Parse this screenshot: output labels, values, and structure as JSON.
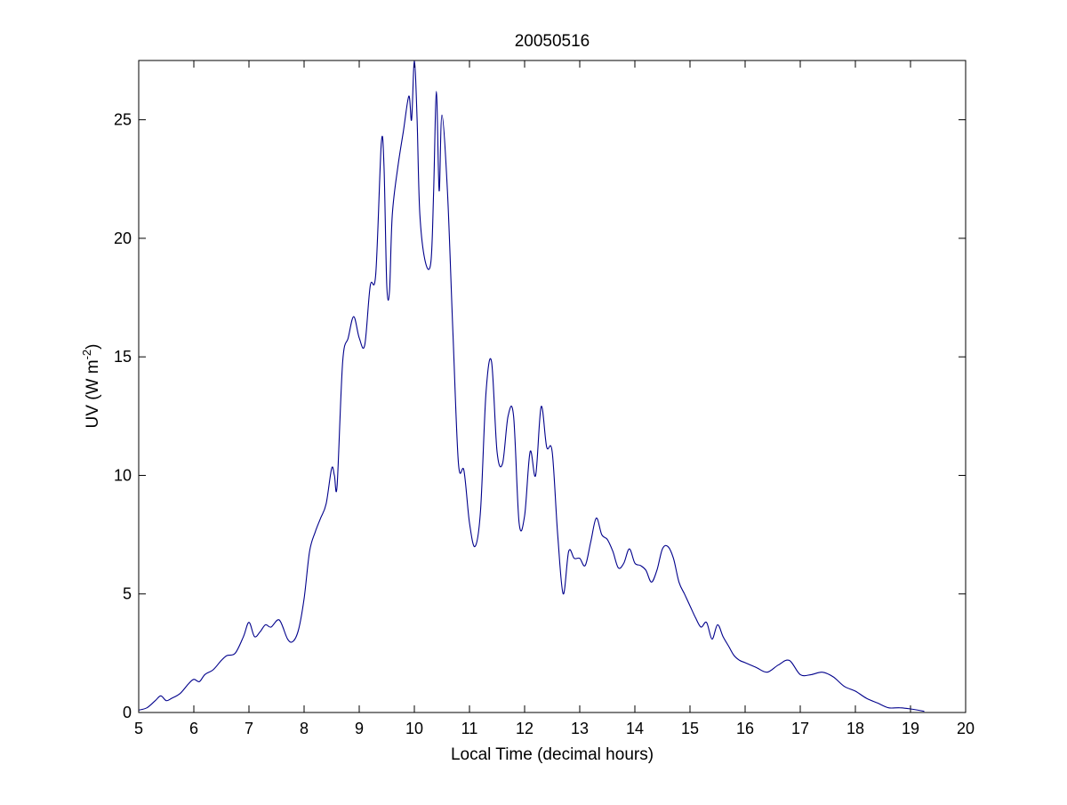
{
  "chart_data": {
    "type": "line",
    "title": "20050516",
    "xlabel": "Local Time (decimal hours)",
    "ylabel": {
      "base": "UV (W m",
      "superscript": "-2",
      "close": ")"
    },
    "xlim": [
      5,
      20
    ],
    "ylim": [
      0,
      27.5
    ],
    "xticks": [
      5,
      6,
      7,
      8,
      9,
      10,
      11,
      12,
      13,
      14,
      15,
      16,
      17,
      18,
      19,
      20
    ],
    "yticks": [
      0,
      5,
      10,
      15,
      20,
      25
    ],
    "grid": false,
    "line_color": "#00008b",
    "series": [
      {
        "x": [
          5.0,
          5.15,
          5.3,
          5.4,
          5.5,
          5.6,
          5.75,
          5.9,
          6.0,
          6.1,
          6.2,
          6.35,
          6.5,
          6.6,
          6.75,
          6.9,
          7.0,
          7.1,
          7.2,
          7.3,
          7.4,
          7.55,
          7.7,
          7.8,
          7.9,
          8.0,
          8.1,
          8.2,
          8.3,
          8.4,
          8.5,
          8.55,
          8.6,
          8.7,
          8.8,
          8.9,
          9.0,
          9.1,
          9.2,
          9.3,
          9.4,
          9.45,
          9.5,
          9.55,
          9.6,
          9.7,
          9.8,
          9.9,
          9.95,
          10.0,
          10.05,
          10.1,
          10.2,
          10.3,
          10.35,
          10.4,
          10.45,
          10.5,
          10.6,
          10.7,
          10.8,
          10.9,
          11.0,
          11.1,
          11.2,
          11.3,
          11.4,
          11.5,
          11.6,
          11.7,
          11.8,
          11.9,
          12.0,
          12.1,
          12.2,
          12.3,
          12.4,
          12.5,
          12.6,
          12.7,
          12.8,
          12.9,
          13.0,
          13.1,
          13.2,
          13.3,
          13.4,
          13.5,
          13.6,
          13.7,
          13.8,
          13.9,
          14.0,
          14.1,
          14.2,
          14.3,
          14.4,
          14.5,
          14.6,
          14.7,
          14.8,
          14.9,
          15.0,
          15.1,
          15.2,
          15.3,
          15.4,
          15.5,
          15.6,
          15.7,
          15.8,
          15.9,
          16.0,
          16.2,
          16.4,
          16.6,
          16.8,
          17.0,
          17.2,
          17.4,
          17.6,
          17.8,
          18.0,
          18.2,
          18.4,
          18.6,
          18.8,
          19.0,
          19.25
        ],
        "y": [
          0.1,
          0.2,
          0.5,
          0.7,
          0.5,
          0.6,
          0.8,
          1.2,
          1.4,
          1.3,
          1.6,
          1.8,
          2.2,
          2.4,
          2.5,
          3.2,
          3.8,
          3.2,
          3.4,
          3.7,
          3.6,
          3.9,
          3.1,
          3.0,
          3.5,
          4.8,
          6.8,
          7.6,
          8.2,
          8.8,
          10.3,
          10.0,
          9.6,
          14.8,
          15.8,
          16.7,
          15.8,
          15.5,
          18.0,
          18.5,
          24.0,
          23.0,
          18.0,
          17.8,
          21.0,
          23.0,
          24.5,
          26.0,
          25.0,
          27.5,
          25.0,
          21.0,
          19.0,
          19.0,
          22.0,
          26.2,
          22.0,
          25.2,
          22.0,
          16.0,
          10.5,
          10.2,
          8.0,
          7.0,
          8.5,
          13.5,
          14.8,
          11.0,
          10.5,
          12.5,
          12.5,
          8.0,
          8.3,
          11.0,
          10.0,
          12.9,
          11.2,
          11.0,
          7.5,
          5.0,
          6.8,
          6.5,
          6.5,
          6.2,
          7.2,
          8.2,
          7.5,
          7.3,
          6.8,
          6.1,
          6.3,
          6.9,
          6.3,
          6.2,
          6.0,
          5.5,
          6.0,
          6.9,
          7.0,
          6.5,
          5.5,
          5.0,
          4.5,
          4.0,
          3.6,
          3.8,
          3.1,
          3.7,
          3.2,
          2.8,
          2.4,
          2.2,
          2.1,
          1.9,
          1.7,
          2.0,
          2.2,
          1.6,
          1.6,
          1.7,
          1.5,
          1.1,
          0.9,
          0.6,
          0.4,
          0.2,
          0.2,
          0.15,
          0.05
        ]
      }
    ]
  }
}
